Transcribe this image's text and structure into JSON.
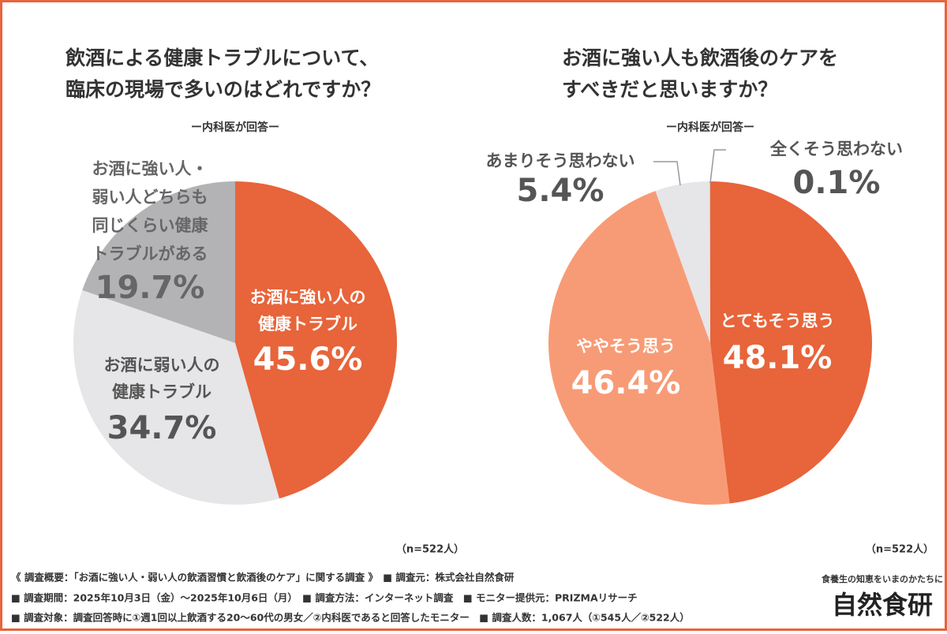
{
  "chart_data": [
    {
      "type": "pie",
      "title": "飲酒による健康トラブルについて、\n臨床の現場で多いのはどれですか？",
      "subtitle": "ー内科医が回答ー",
      "note": "（n=522人）",
      "categories": [
        "お酒に強い人の\n健康トラブル",
        "お酒に弱い人の\n健康トラブル",
        "お酒に強い人・\n弱い人どちらも\n同じくらい健康\nトラブルがある"
      ],
      "values": [
        45.6,
        34.7,
        19.7
      ],
      "value_labels": [
        "45.6%",
        "34.7%",
        "19.7%"
      ],
      "colors": [
        "#e8643a",
        "#e6e5e8",
        "#b3b2b5"
      ]
    },
    {
      "type": "pie",
      "title": "お酒に強い人も飲酒後のケアを\nすべきだと思いますか？",
      "subtitle": "ー内科医が回答ー",
      "note": "（n=522人）",
      "categories": [
        "とてもそう思う",
        "ややそう思う",
        "あまりそう思わない",
        "全くそう思わない"
      ],
      "values": [
        48.1,
        46.4,
        5.4,
        0.1
      ],
      "value_labels": [
        "48.1%",
        "46.4%",
        "5.4%",
        "0.1%"
      ],
      "colors": [
        "#e8643a",
        "#f79b76",
        "#e6e5e8",
        "#d0cfd2"
      ]
    }
  ],
  "survey_notes": [
    "《 調査概要：「お酒に強い人・弱い人の飲酒習慣と飲酒後のケア」に関する調査 》　■ 調査元：株式会社自然食研",
    "■ 調査期間：2025年10月3日（金）～2025年10月6日（月）　■ 調査方法：インターネット調査　■ モニター提供元：PRIZMAリサーチ",
    "■ 調査対象：調査回答時に①週1回以上飲酒する20～60代の男女／②内科医であると回答したモニター　■ 調査人数：1,067人（①545人／②522人）"
  ],
  "brand": {
    "tagline": "食養生の知恵をいまのかたちに",
    "name": "自然食研"
  }
}
